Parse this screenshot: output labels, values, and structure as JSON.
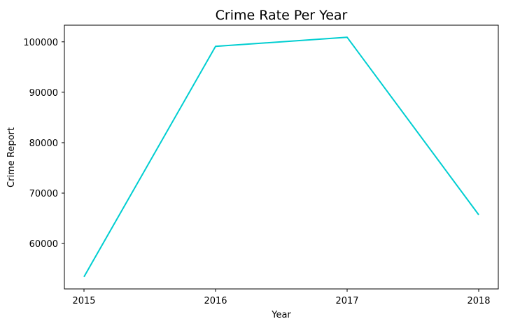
{
  "chart_data": {
    "type": "line",
    "title": "Crime Rate Per Year",
    "xlabel": "Year",
    "ylabel": "Crime Report",
    "categories": [
      "2015",
      "2016",
      "2017",
      "2018"
    ],
    "series": [
      {
        "values": [
          53400,
          99100,
          100900,
          65700
        ],
        "color": "#00ced1"
      }
    ],
    "ylim": [
      51000,
      103300
    ],
    "yticks": [
      {
        "value": 60000,
        "label": "60000"
      },
      {
        "value": 70000,
        "label": "70000"
      },
      {
        "value": 80000,
        "label": "80000"
      },
      {
        "value": 90000,
        "label": "90000"
      },
      {
        "value": 100000,
        "label": "100000"
      }
    ],
    "grid": false,
    "legend": "none"
  }
}
